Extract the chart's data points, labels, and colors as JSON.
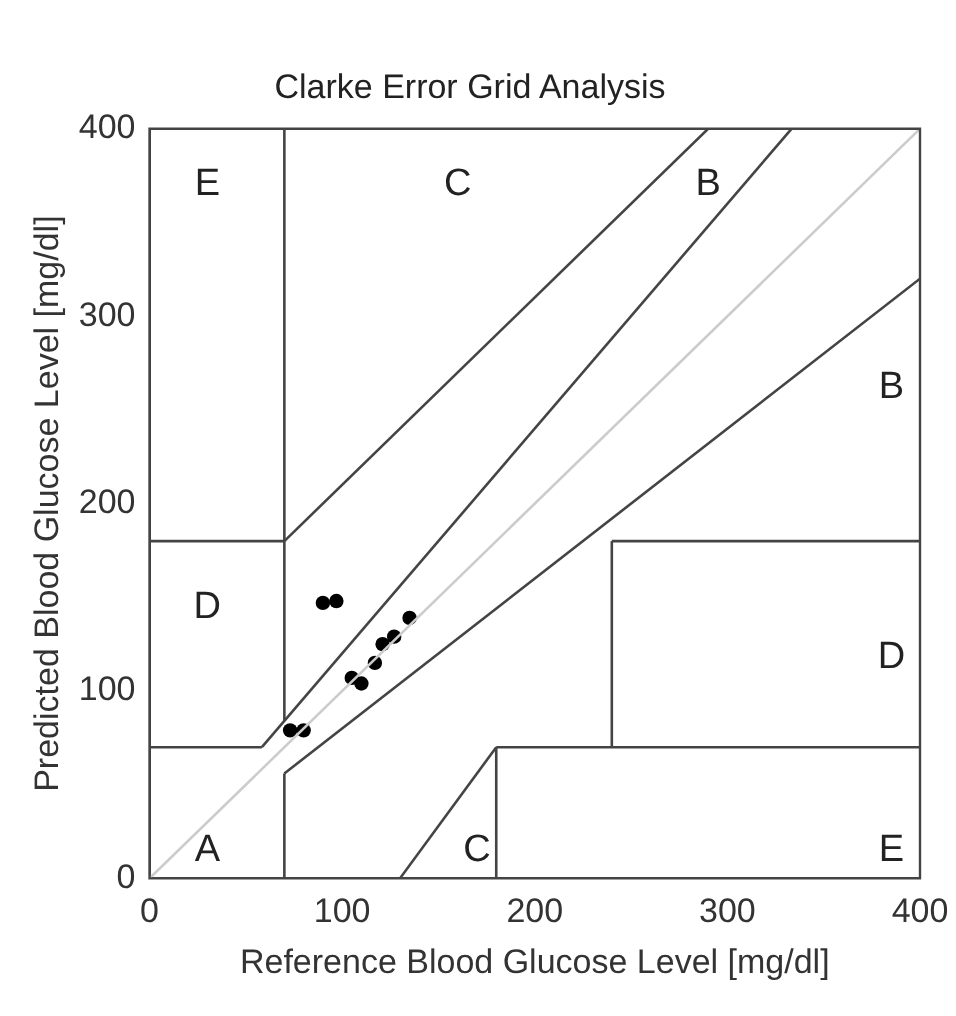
{
  "chart_data": {
    "type": "scatter",
    "title": "Clarke Error Grid Analysis",
    "xlabel": "Reference Blood Glucose Level [mg/dl]",
    "ylabel": "Predicted Blood Glucose Level [mg/dl]",
    "xlim": [
      0,
      400
    ],
    "ylim": [
      0,
      400
    ],
    "xticks": [
      0,
      100,
      200,
      300,
      400
    ],
    "yticks": [
      0,
      100,
      200,
      300,
      400
    ],
    "grid": false,
    "marker": "circle",
    "series": [
      {
        "type": "line",
        "marker": "none",
        "color": "#cccccc",
        "x": [
          0,
          400
        ],
        "values": [
          0,
          400
        ]
      },
      {
        "type": "line",
        "marker": "none",
        "color": "#444444",
        "x": [
          58.33,
          333.3
        ],
        "values": [
          70,
          400
        ]
      },
      {
        "type": "line",
        "marker": "none",
        "color": "#444444",
        "x": [
          70,
          400
        ],
        "values": [
          56,
          320
        ]
      },
      {
        "type": "line",
        "marker": "none",
        "color": "#444444",
        "x": [
          70,
          70
        ],
        "values": [
          84,
          400
        ]
      },
      {
        "type": "line",
        "marker": "none",
        "color": "#444444",
        "x": [
          0,
          70
        ],
        "values": [
          180,
          180
        ]
      },
      {
        "type": "line",
        "marker": "none",
        "color": "#444444",
        "x": [
          70,
          290
        ],
        "values": [
          180,
          400
        ]
      },
      {
        "type": "line",
        "marker": "none",
        "color": "#444444",
        "x": [
          70,
          70
        ],
        "values": [
          0,
          56
        ]
      },
      {
        "type": "line",
        "marker": "none",
        "color": "#444444",
        "x": [
          0,
          58.33
        ],
        "values": [
          70,
          70
        ]
      },
      {
        "type": "line",
        "marker": "none",
        "color": "#444444",
        "x": [
          240,
          240
        ],
        "values": [
          70,
          180
        ]
      },
      {
        "type": "line",
        "marker": "none",
        "color": "#444444",
        "x": [
          240,
          400
        ],
        "values": [
          180,
          180
        ]
      },
      {
        "type": "line",
        "marker": "none",
        "color": "#444444",
        "x": [
          130,
          180
        ],
        "values": [
          0,
          70
        ]
      },
      {
        "type": "line",
        "marker": "none",
        "color": "#444444",
        "x": [
          180,
          400
        ],
        "values": [
          70,
          70
        ]
      },
      {
        "type": "line",
        "marker": "none",
        "color": "#444444",
        "x": [
          180,
          180
        ],
        "values": [
          0,
          70
        ]
      },
      {
        "color": "#000000",
        "x": [
          73,
          80,
          90,
          97,
          105,
          110,
          117,
          121,
          127,
          135
        ],
        "values": [
          79,
          79,
          147,
          148,
          107,
          104,
          115,
          125,
          129,
          139
        ]
      }
    ],
    "annotations": [
      "E",
      "C",
      "B",
      "B",
      "D",
      "D",
      "A",
      "C",
      "E"
    ]
  }
}
